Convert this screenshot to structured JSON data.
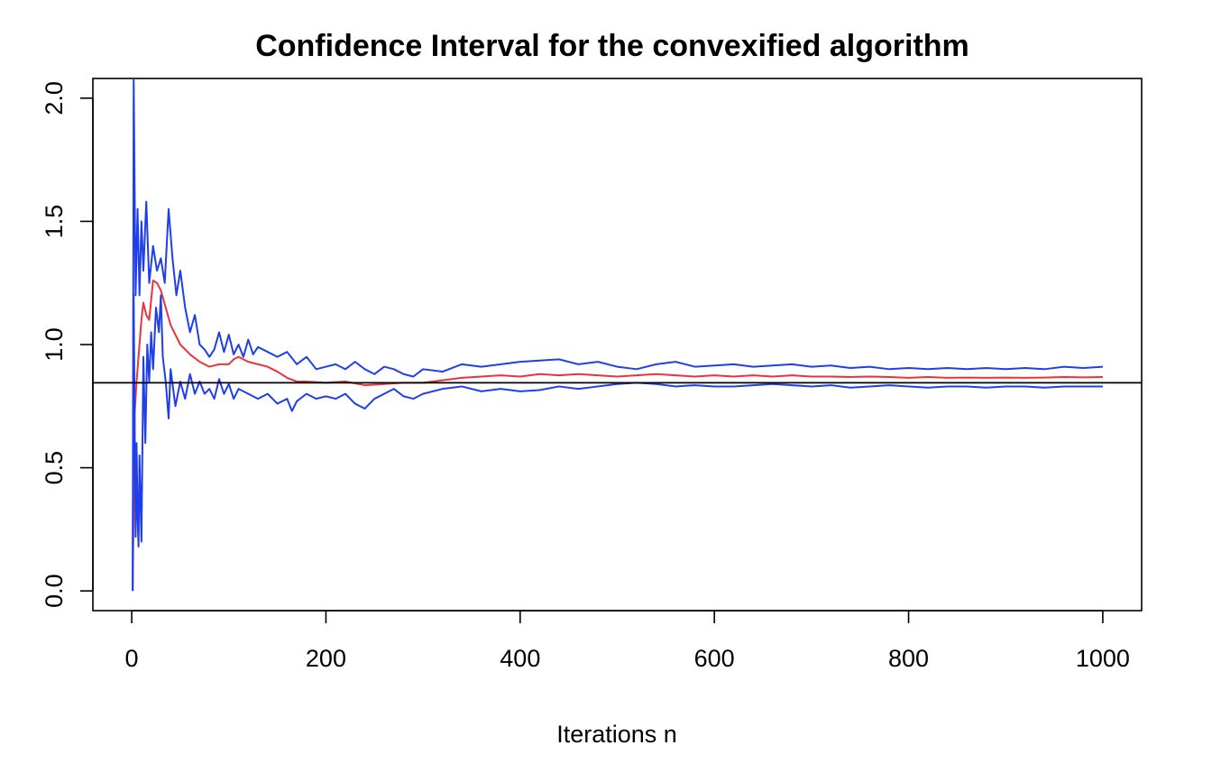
{
  "chart_data": {
    "type": "line",
    "title": "Confidence Interval for the convexified algorithm",
    "xlabel": "Iterations n",
    "ylabel": "",
    "xlim": [
      -40,
      1040
    ],
    "ylim": [
      -0.08,
      2.08
    ],
    "x_ticks": [
      0,
      200,
      400,
      600,
      800,
      1000
    ],
    "x_tick_labels": [
      "0",
      "200",
      "400",
      "600",
      "800",
      "1000"
    ],
    "y_ticks": [
      0.0,
      0.5,
      1.0,
      1.5,
      2.0
    ],
    "y_tick_labels": [
      "0.0",
      "0.5",
      "1.0",
      "1.5",
      "2.0"
    ],
    "grid": false,
    "legend": "none",
    "reference_line": {
      "y": 0.845,
      "color": "#000000"
    },
    "series": [
      {
        "role": "upper-bound",
        "color": "#1f3fe8",
        "points": [
          [
            1,
            0.0
          ],
          [
            2,
            2.08
          ],
          [
            4,
            1.2
          ],
          [
            6,
            1.55
          ],
          [
            8,
            1.2
          ],
          [
            10,
            1.5
          ],
          [
            12,
            1.3
          ],
          [
            15,
            1.58
          ],
          [
            18,
            1.25
          ],
          [
            22,
            1.4
          ],
          [
            26,
            1.3
          ],
          [
            30,
            1.35
          ],
          [
            34,
            1.25
          ],
          [
            38,
            1.55
          ],
          [
            42,
            1.35
          ],
          [
            46,
            1.2
          ],
          [
            50,
            1.3
          ],
          [
            55,
            1.15
          ],
          [
            60,
            1.05
          ],
          [
            65,
            1.12
          ],
          [
            70,
            1.0
          ],
          [
            75,
            0.98
          ],
          [
            80,
            0.95
          ],
          [
            85,
            0.98
          ],
          [
            90,
            1.05
          ],
          [
            95,
            0.97
          ],
          [
            100,
            1.04
          ],
          [
            105,
            0.96
          ],
          [
            110,
            1.0
          ],
          [
            115,
            0.95
          ],
          [
            120,
            1.02
          ],
          [
            125,
            0.96
          ],
          [
            130,
            0.99
          ],
          [
            140,
            0.97
          ],
          [
            150,
            0.95
          ],
          [
            160,
            0.97
          ],
          [
            170,
            0.92
          ],
          [
            180,
            0.95
          ],
          [
            190,
            0.9
          ],
          [
            200,
            0.91
          ],
          [
            210,
            0.92
          ],
          [
            220,
            0.9
          ],
          [
            230,
            0.93
          ],
          [
            240,
            0.9
          ],
          [
            250,
            0.88
          ],
          [
            260,
            0.91
          ],
          [
            270,
            0.9
          ],
          [
            280,
            0.88
          ],
          [
            290,
            0.87
          ],
          [
            300,
            0.9
          ],
          [
            320,
            0.89
          ],
          [
            340,
            0.92
          ],
          [
            360,
            0.91
          ],
          [
            380,
            0.92
          ],
          [
            400,
            0.93
          ],
          [
            420,
            0.935
          ],
          [
            440,
            0.94
          ],
          [
            460,
            0.92
          ],
          [
            480,
            0.93
          ],
          [
            500,
            0.91
          ],
          [
            520,
            0.9
          ],
          [
            540,
            0.92
          ],
          [
            560,
            0.93
          ],
          [
            580,
            0.91
          ],
          [
            600,
            0.915
          ],
          [
            620,
            0.92
          ],
          [
            640,
            0.91
          ],
          [
            660,
            0.915
          ],
          [
            680,
            0.92
          ],
          [
            700,
            0.91
          ],
          [
            720,
            0.915
          ],
          [
            740,
            0.905
          ],
          [
            760,
            0.91
          ],
          [
            780,
            0.9
          ],
          [
            800,
            0.905
          ],
          [
            820,
            0.9
          ],
          [
            840,
            0.905
          ],
          [
            860,
            0.9
          ],
          [
            880,
            0.905
          ],
          [
            900,
            0.9
          ],
          [
            920,
            0.905
          ],
          [
            940,
            0.9
          ],
          [
            960,
            0.91
          ],
          [
            980,
            0.905
          ],
          [
            1000,
            0.91
          ]
        ]
      },
      {
        "role": "estimate",
        "color": "#e8343a",
        "points": [
          [
            1,
            0.0
          ],
          [
            3,
            0.72
          ],
          [
            5,
            0.85
          ],
          [
            8,
            1.0
          ],
          [
            10,
            1.1
          ],
          [
            12,
            1.17
          ],
          [
            15,
            1.12
          ],
          [
            18,
            1.1
          ],
          [
            22,
            1.26
          ],
          [
            26,
            1.25
          ],
          [
            30,
            1.22
          ],
          [
            35,
            1.15
          ],
          [
            40,
            1.08
          ],
          [
            45,
            1.04
          ],
          [
            50,
            1.0
          ],
          [
            55,
            0.98
          ],
          [
            60,
            0.96
          ],
          [
            70,
            0.93
          ],
          [
            80,
            0.91
          ],
          [
            90,
            0.92
          ],
          [
            100,
            0.92
          ],
          [
            105,
            0.94
          ],
          [
            110,
            0.95
          ],
          [
            120,
            0.93
          ],
          [
            130,
            0.92
          ],
          [
            140,
            0.91
          ],
          [
            150,
            0.89
          ],
          [
            160,
            0.865
          ],
          [
            170,
            0.85
          ],
          [
            180,
            0.85
          ],
          [
            200,
            0.845
          ],
          [
            220,
            0.85
          ],
          [
            240,
            0.835
          ],
          [
            260,
            0.84
          ],
          [
            280,
            0.845
          ],
          [
            300,
            0.845
          ],
          [
            320,
            0.855
          ],
          [
            340,
            0.865
          ],
          [
            360,
            0.87
          ],
          [
            380,
            0.875
          ],
          [
            400,
            0.87
          ],
          [
            420,
            0.88
          ],
          [
            440,
            0.875
          ],
          [
            460,
            0.88
          ],
          [
            480,
            0.875
          ],
          [
            500,
            0.87
          ],
          [
            520,
            0.875
          ],
          [
            540,
            0.88
          ],
          [
            560,
            0.875
          ],
          [
            580,
            0.87
          ],
          [
            600,
            0.875
          ],
          [
            620,
            0.87
          ],
          [
            640,
            0.875
          ],
          [
            660,
            0.87
          ],
          [
            680,
            0.875
          ],
          [
            700,
            0.87
          ],
          [
            720,
            0.87
          ],
          [
            740,
            0.868
          ],
          [
            760,
            0.87
          ],
          [
            780,
            0.868
          ],
          [
            800,
            0.865
          ],
          [
            820,
            0.868
          ],
          [
            840,
            0.865
          ],
          [
            860,
            0.866
          ],
          [
            880,
            0.865
          ],
          [
            900,
            0.866
          ],
          [
            920,
            0.865
          ],
          [
            940,
            0.866
          ],
          [
            960,
            0.868
          ],
          [
            980,
            0.867
          ],
          [
            1000,
            0.868
          ]
        ]
      },
      {
        "role": "lower-bound",
        "color": "#1f3fe8",
        "points": [
          [
            1,
            0.0
          ],
          [
            2,
            1.2
          ],
          [
            4,
            0.22
          ],
          [
            5,
            0.6
          ],
          [
            6,
            0.3
          ],
          [
            7,
            0.18
          ],
          [
            8,
            0.55
          ],
          [
            10,
            0.2
          ],
          [
            12,
            0.95
          ],
          [
            14,
            0.6
          ],
          [
            16,
            1.0
          ],
          [
            18,
            0.85
          ],
          [
            20,
            1.05
          ],
          [
            22,
            0.9
          ],
          [
            25,
            1.15
          ],
          [
            28,
            1.05
          ],
          [
            30,
            1.2
          ],
          [
            32,
            0.95
          ],
          [
            35,
            0.85
          ],
          [
            38,
            0.7
          ],
          [
            40,
            0.9
          ],
          [
            45,
            0.75
          ],
          [
            50,
            0.85
          ],
          [
            55,
            0.78
          ],
          [
            60,
            0.88
          ],
          [
            65,
            0.8
          ],
          [
            70,
            0.85
          ],
          [
            75,
            0.8
          ],
          [
            80,
            0.82
          ],
          [
            85,
            0.78
          ],
          [
            90,
            0.86
          ],
          [
            95,
            0.8
          ],
          [
            100,
            0.84
          ],
          [
            105,
            0.78
          ],
          [
            110,
            0.82
          ],
          [
            120,
            0.8
          ],
          [
            130,
            0.78
          ],
          [
            140,
            0.8
          ],
          [
            150,
            0.76
          ],
          [
            160,
            0.78
          ],
          [
            165,
            0.73
          ],
          [
            170,
            0.77
          ],
          [
            180,
            0.8
          ],
          [
            190,
            0.78
          ],
          [
            200,
            0.79
          ],
          [
            210,
            0.78
          ],
          [
            220,
            0.8
          ],
          [
            230,
            0.76
          ],
          [
            240,
            0.74
          ],
          [
            250,
            0.78
          ],
          [
            260,
            0.8
          ],
          [
            270,
            0.82
          ],
          [
            280,
            0.79
          ],
          [
            290,
            0.78
          ],
          [
            300,
            0.8
          ],
          [
            320,
            0.82
          ],
          [
            340,
            0.83
          ],
          [
            360,
            0.81
          ],
          [
            380,
            0.82
          ],
          [
            400,
            0.81
          ],
          [
            420,
            0.815
          ],
          [
            440,
            0.83
          ],
          [
            460,
            0.82
          ],
          [
            480,
            0.83
          ],
          [
            500,
            0.84
          ],
          [
            520,
            0.845
          ],
          [
            540,
            0.84
          ],
          [
            560,
            0.83
          ],
          [
            580,
            0.835
          ],
          [
            600,
            0.83
          ],
          [
            620,
            0.83
          ],
          [
            640,
            0.835
          ],
          [
            660,
            0.84
          ],
          [
            680,
            0.835
          ],
          [
            700,
            0.83
          ],
          [
            720,
            0.835
          ],
          [
            740,
            0.825
          ],
          [
            760,
            0.83
          ],
          [
            780,
            0.835
          ],
          [
            800,
            0.83
          ],
          [
            820,
            0.825
          ],
          [
            840,
            0.83
          ],
          [
            860,
            0.83
          ],
          [
            880,
            0.825
          ],
          [
            900,
            0.83
          ],
          [
            920,
            0.83
          ],
          [
            940,
            0.825
          ],
          [
            960,
            0.83
          ],
          [
            980,
            0.83
          ],
          [
            1000,
            0.83
          ]
        ]
      }
    ]
  }
}
